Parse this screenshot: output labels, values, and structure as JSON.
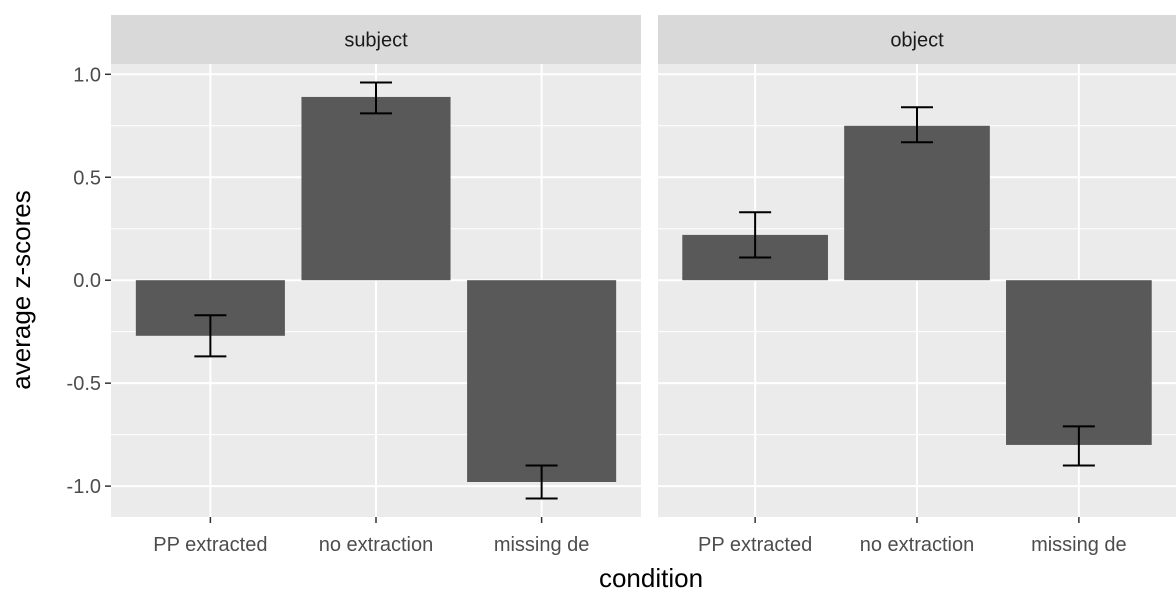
{
  "chart_data": {
    "type": "bar",
    "xlabel": "condition",
    "ylabel": "average z-scores",
    "categories": [
      "PP extracted",
      "no extraction",
      "missing de"
    ],
    "ylim": [
      -1.15,
      1.05
    ],
    "yticks": [
      -1.0,
      -0.5,
      0.0,
      0.5,
      1.0
    ],
    "ytick_labels": [
      "-1.0",
      "-0.5",
      "0.0",
      "0.5",
      "1.0"
    ],
    "grid": true,
    "panels": [
      {
        "strip": "subject",
        "values": [
          -0.27,
          0.89,
          -0.98
        ],
        "error_low": [
          -0.37,
          0.81,
          -1.06
        ],
        "error_high": [
          -0.17,
          0.96,
          -0.9
        ]
      },
      {
        "strip": "object",
        "values": [
          0.22,
          0.75,
          -0.8
        ],
        "error_low": [
          0.11,
          0.67,
          -0.9
        ],
        "error_high": [
          0.33,
          0.84,
          -0.71
        ]
      }
    ],
    "colors": {
      "bar": "#595959",
      "panel_background": "#ebebeb",
      "strip_background": "#d9d9d9",
      "grid": "#ffffff",
      "error_bar": "#000000"
    }
  }
}
